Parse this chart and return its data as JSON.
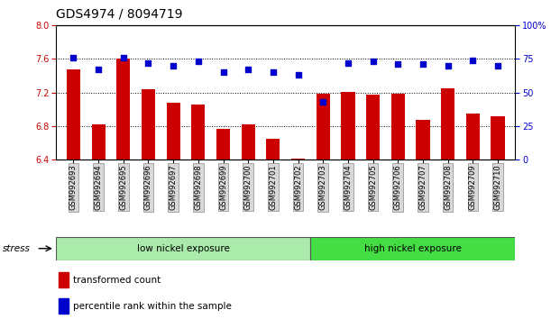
{
  "title": "GDS4974 / 8094719",
  "categories": [
    "GSM992693",
    "GSM992694",
    "GSM992695",
    "GSM992696",
    "GSM992697",
    "GSM992698",
    "GSM992699",
    "GSM992700",
    "GSM992701",
    "GSM992702",
    "GSM992703",
    "GSM992704",
    "GSM992705",
    "GSM992706",
    "GSM992707",
    "GSM992708",
    "GSM992709",
    "GSM992710"
  ],
  "bar_values": [
    7.48,
    6.82,
    7.6,
    7.24,
    7.08,
    7.06,
    6.77,
    6.82,
    6.65,
    6.41,
    7.19,
    7.21,
    7.17,
    7.19,
    6.87,
    7.25,
    6.95,
    6.92
  ],
  "dot_values": [
    76,
    67,
    76,
    72,
    70,
    73,
    65,
    67,
    65,
    63,
    43,
    72,
    73,
    71,
    71,
    70,
    74,
    70
  ],
  "ylim_left": [
    6.4,
    8.0
  ],
  "ylim_right": [
    0,
    100
  ],
  "yticks_left": [
    6.4,
    6.8,
    7.2,
    7.6,
    8.0
  ],
  "yticks_right": [
    0,
    25,
    50,
    75,
    100
  ],
  "bar_color": "#cc0000",
  "dot_color": "#0000cc",
  "group1_label": "low nickel exposure",
  "group2_label": "high nickel exposure",
  "group1_count": 10,
  "group1_color": "#aaeaaa",
  "group2_color": "#44dd44",
  "stress_label": "stress",
  "legend_bar": "transformed count",
  "legend_dot": "percentile rank within the sample",
  "title_fontsize": 10
}
